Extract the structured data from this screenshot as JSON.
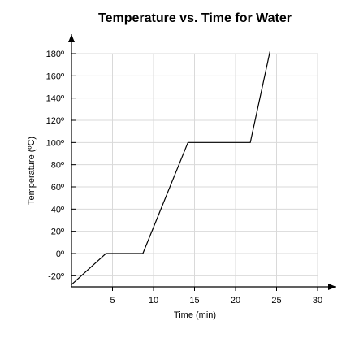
{
  "chart_data": {
    "type": "line",
    "title": "Temperature vs. Time for Water",
    "xlabel": "Time (min)",
    "ylabel": "Temperature (ºC)",
    "xlim": [
      0,
      30
    ],
    "ylim": [
      -30,
      180
    ],
    "grid": true,
    "x_ticks": [
      5,
      10,
      15,
      20,
      25,
      30
    ],
    "y_ticks": [
      -20,
      0,
      20,
      40,
      60,
      80,
      100,
      120,
      140,
      160,
      180
    ],
    "x_tick_labels": [
      "5",
      "10",
      "15",
      "20",
      "25",
      "30"
    ],
    "y_tick_labels": [
      "-20º",
      "0º",
      "20º",
      "40º",
      "60º",
      "80º",
      "100º",
      "120º",
      "140º",
      "160º",
      "180º"
    ],
    "series": [
      {
        "points": [
          [
            0,
            -28
          ],
          [
            4.2,
            0
          ],
          [
            8.7,
            0
          ],
          [
            14.2,
            100
          ],
          [
            21.8,
            100
          ],
          [
            24.2,
            182
          ]
        ]
      }
    ],
    "colors": {
      "line": "#000000",
      "grid": "#d9d9d9",
      "axis": "#000000"
    }
  }
}
